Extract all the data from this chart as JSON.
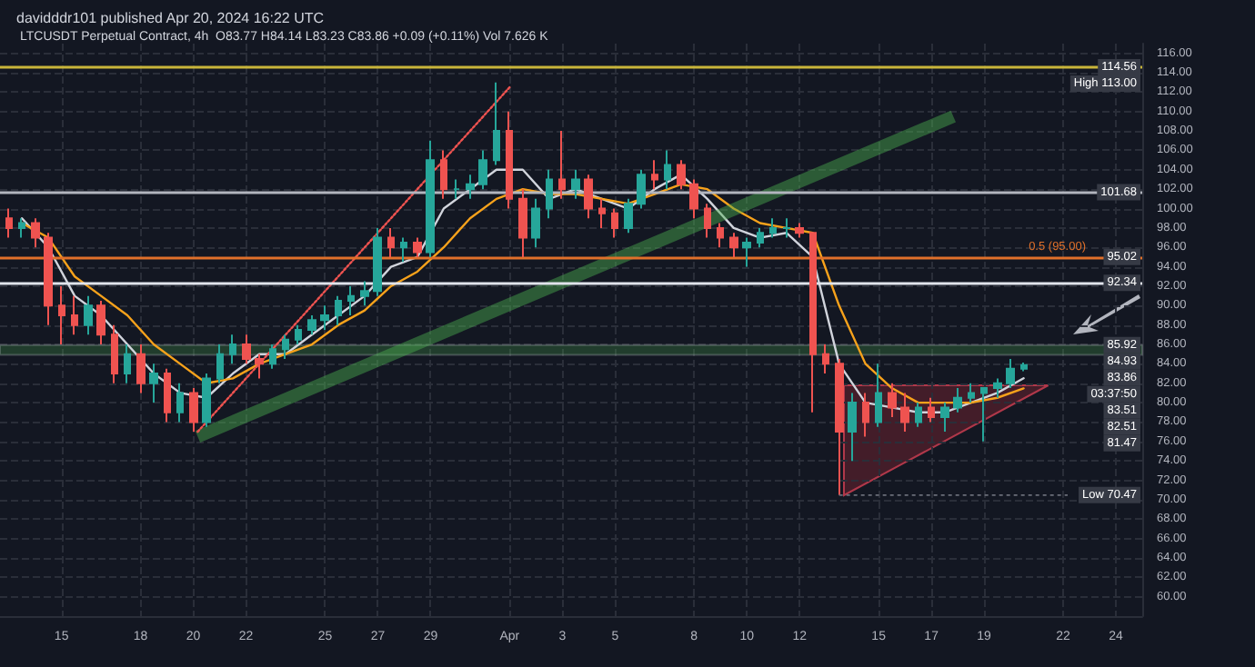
{
  "chart_data": {
    "type": "candlestick",
    "title": "LTCUSDT Perpetual Contract, 4h  O83.77 H84.14 L83.23 C83.86 +0.09 (+0.11%) Vol 7.626 K",
    "subtitle": "davidddr101 published Apr 20, 2024 16:22 UTC",
    "xlim": [
      "2024-03-12T16:00",
      "2024-04-25"
    ],
    "xticks": [
      {
        "value": "2024-03-15",
        "label": "15"
      },
      {
        "value": "2024-03-18",
        "label": "18"
      },
      {
        "value": "2024-03-20",
        "label": "20"
      },
      {
        "value": "2024-03-22",
        "label": "22"
      },
      {
        "value": "2024-03-25",
        "label": "25"
      },
      {
        "value": "2024-03-27",
        "label": "27"
      },
      {
        "value": "2024-03-29",
        "label": "29"
      },
      {
        "value": "2024-04-01",
        "label": "Apr"
      },
      {
        "value": "2024-04-03",
        "label": "3"
      },
      {
        "value": "2024-04-05",
        "label": "5"
      },
      {
        "value": "2024-04-08",
        "label": "8"
      },
      {
        "value": "2024-04-10",
        "label": "10"
      },
      {
        "value": "2024-04-12",
        "label": "12"
      },
      {
        "value": "2024-04-15",
        "label": "15"
      },
      {
        "value": "2024-04-17",
        "label": "17"
      },
      {
        "value": "2024-04-19",
        "label": "19"
      },
      {
        "value": "2024-04-22",
        "label": "22"
      },
      {
        "value": "2024-04-24",
        "label": "24"
      }
    ],
    "ylim": [
      58,
      117
    ],
    "yticks": [
      {
        "value": 60,
        "label": "60.00"
      },
      {
        "value": 62,
        "label": "62.00"
      },
      {
        "value": 64,
        "label": "64.00"
      },
      {
        "value": 66,
        "label": "66.00"
      },
      {
        "value": 68,
        "label": "68.00"
      },
      {
        "value": 70,
        "label": "70.00"
      },
      {
        "value": 72,
        "label": "72.00"
      },
      {
        "value": 74,
        "label": "74.00"
      },
      {
        "value": 76,
        "label": "76.00"
      },
      {
        "value": 78,
        "label": "78.00"
      },
      {
        "value": 80,
        "label": "80.00"
      },
      {
        "value": 82,
        "label": "82.00"
      },
      {
        "value": 84,
        "label": "84.00"
      },
      {
        "value": 86,
        "label": "86.00"
      },
      {
        "value": 88,
        "label": "88.00"
      },
      {
        "value": 90,
        "label": "90.00"
      },
      {
        "value": 92,
        "label": "92.00"
      },
      {
        "value": 94,
        "label": "94.00"
      },
      {
        "value": 96,
        "label": "96.00"
      },
      {
        "value": 98,
        "label": "98.00"
      },
      {
        "value": 100,
        "label": "100.00"
      },
      {
        "value": 102,
        "label": "102.00"
      },
      {
        "value": 104,
        "label": "104.00"
      },
      {
        "value": 106,
        "label": "106.00"
      },
      {
        "value": 108,
        "label": "108.00"
      },
      {
        "value": 110,
        "label": "110.00"
      },
      {
        "value": 112,
        "label": "112.00"
      },
      {
        "value": 114,
        "label": "114.00"
      },
      {
        "value": 116,
        "label": "116.00"
      }
    ],
    "grid": true,
    "series": [
      {
        "colors": [
          "#ef5350",
          "#26a69a",
          "#ef5350",
          "#ef5350",
          "#ef5350",
          "#ef5350",
          "#26a69a",
          "#ef5350",
          "#ef5350",
          "#26a69a",
          "#ef5350",
          "#26a69a",
          "#ef5350",
          "#26a69a",
          "#ef5350",
          "#26a69a",
          "#26a69a",
          "#26a69a",
          "#ef5350",
          "#ef5350",
          "#26a69a",
          "#26a69a",
          "#26a69a",
          "#26a69a",
          "#26a69a",
          "#26a69a",
          "#26a69a",
          "#26a69a",
          "#26a69a",
          "#ef5350",
          "#26a69a",
          "#ef5350",
          "#26a69a",
          "#ef5350",
          "#26a69a",
          "#26a69a",
          "#26a69a",
          "#26a69a",
          "#ef5350",
          "#ef5350",
          "#26a69a",
          "#26a69a",
          "#ef5350",
          "#26a69a",
          "#ef5350",
          "#ef5350",
          "#ef5350",
          "#26a69a",
          "#26a69a",
          "#ef5350",
          "#26a69a",
          "#ef5350",
          "#ef5350",
          "#ef5350",
          "#ef5350",
          "#ef5350",
          "#26a69a",
          "#26a69a",
          "#26a69a",
          "#26a69a",
          "#ef5350",
          "#ef5350",
          "#ef5350",
          "#ef5350",
          "#26a69a",
          "#ef5350",
          "#26a69a",
          "#ef5350",
          "#ef5350",
          "#26a69a",
          "#ef5350",
          "#26a69a",
          "#26a69a",
          "#26a69a",
          "#26a69a",
          "#26a69a",
          "#26a69a",
          "#26a69a"
        ],
        "x": [
          "2024-03-13T00:00",
          "2024-03-13T12:00",
          "2024-03-14T00:00",
          "2024-03-14T12:00",
          "2024-03-15T00:00",
          "2024-03-15T12:00",
          "2024-03-16T00:00",
          "2024-03-16T12:00",
          "2024-03-17T00:00",
          "2024-03-17T12:00",
          "2024-03-18T00:00",
          "2024-03-18T12:00",
          "2024-03-19T00:00",
          "2024-03-19T12:00",
          "2024-03-20T00:00",
          "2024-03-20T12:00",
          "2024-03-21T00:00",
          "2024-03-21T12:00",
          "2024-03-22T00:00",
          "2024-03-22T12:00",
          "2024-03-23T00:00",
          "2024-03-23T12:00",
          "2024-03-24T00:00",
          "2024-03-24T12:00",
          "2024-03-25T00:00",
          "2024-03-25T12:00",
          "2024-03-26T00:00",
          "2024-03-26T12:00",
          "2024-03-27T00:00",
          "2024-03-27T12:00",
          "2024-03-28T00:00",
          "2024-03-28T12:00",
          "2024-03-29T00:00",
          "2024-03-29T12:00",
          "2024-03-30T00:00",
          "2024-03-30T12:00",
          "2024-03-31T00:00",
          "2024-03-31T12:00",
          "2024-04-01T00:00",
          "2024-04-01T12:00",
          "2024-04-02T00:00",
          "2024-04-02T12:00",
          "2024-04-03T00:00",
          "2024-04-03T12:00",
          "2024-04-04T00:00",
          "2024-04-04T12:00",
          "2024-04-05T00:00",
          "2024-04-05T12:00",
          "2024-04-06T00:00",
          "2024-04-06T12:00",
          "2024-04-07T00:00",
          "2024-04-07T12:00",
          "2024-04-08T00:00",
          "2024-04-08T12:00",
          "2024-04-09T00:00",
          "2024-04-09T12:00",
          "2024-04-10T00:00",
          "2024-04-10T12:00",
          "2024-04-11T00:00",
          "2024-04-11T12:00",
          "2024-04-12T00:00",
          "2024-04-12T12:00",
          "2024-04-13T00:00",
          "2024-04-13T12:00",
          "2024-04-14T00:00",
          "2024-04-14T12:00",
          "2024-04-15T00:00",
          "2024-04-15T12:00",
          "2024-04-16T00:00",
          "2024-04-16T12:00",
          "2024-04-17T00:00",
          "2024-04-17T12:00",
          "2024-04-18T00:00",
          "2024-04-18T12:00",
          "2024-04-19T00:00",
          "2024-04-19T12:00",
          "2024-04-20T00:00",
          "2024-04-20T12:00"
        ],
        "ohlc": [
          [
            99,
            100,
            97,
            98
          ],
          [
            98,
            99,
            97,
            98.5
          ],
          [
            98.5,
            99,
            96,
            97
          ],
          [
            97,
            97.5,
            88,
            90
          ],
          [
            90,
            92,
            86,
            89
          ],
          [
            89,
            91,
            87,
            88
          ],
          [
            88,
            91,
            87,
            90
          ],
          [
            90,
            90.5,
            86,
            87
          ],
          [
            87,
            88,
            82,
            83
          ],
          [
            83,
            86,
            82,
            85
          ],
          [
            85,
            86,
            81,
            82
          ],
          [
            82,
            84,
            80,
            83
          ],
          [
            83,
            83.5,
            78,
            79
          ],
          [
            79,
            82,
            78,
            81
          ],
          [
            81,
            81.5,
            77,
            78
          ],
          [
            78,
            83,
            77.5,
            82.5
          ],
          [
            82.5,
            86,
            82,
            85
          ],
          [
            85,
            87,
            84,
            86
          ],
          [
            86,
            87,
            84,
            84.5
          ],
          [
            84.5,
            85,
            82.5,
            84
          ],
          [
            84,
            86,
            83.5,
            85.5
          ],
          [
            85.5,
            87,
            84.5,
            86.5
          ],
          [
            86.5,
            88,
            86,
            87.5
          ],
          [
            87.5,
            89,
            87,
            88.5
          ],
          [
            88.5,
            90,
            87.5,
            89
          ],
          [
            89,
            91,
            88,
            90.5
          ],
          [
            90.5,
            92,
            89,
            91
          ],
          [
            91,
            92.5,
            90,
            91.5
          ],
          [
            91.5,
            98,
            91,
            97
          ],
          [
            97,
            98,
            95,
            96
          ],
          [
            96,
            97,
            94.5,
            96.5
          ],
          [
            96.5,
            97,
            95,
            95.5
          ],
          [
            95.5,
            107,
            95,
            105
          ],
          [
            105,
            106,
            101,
            102
          ],
          [
            102,
            103,
            101,
            102
          ],
          [
            102,
            103.5,
            101,
            102.5
          ],
          [
            102.5,
            106,
            102,
            105
          ],
          [
            105,
            113,
            104.5,
            108
          ],
          [
            108,
            110,
            100,
            101
          ],
          [
            101,
            102,
            95,
            97
          ],
          [
            97,
            101,
            96,
            100
          ],
          [
            100,
            104,
            99,
            103
          ],
          [
            103,
            108,
            101,
            102
          ],
          [
            102,
            104,
            101,
            103
          ],
          [
            103,
            103.5,
            99,
            100
          ],
          [
            100,
            101,
            98,
            99.5
          ],
          [
            99.5,
            100,
            97,
            98
          ],
          [
            98,
            101,
            97.5,
            100.5
          ],
          [
            100.5,
            104,
            100,
            103.5
          ],
          [
            103.5,
            105,
            102,
            103
          ],
          [
            103,
            106,
            102,
            104.5
          ],
          [
            104.5,
            105,
            102,
            102.5
          ],
          [
            102.5,
            103,
            99,
            100
          ],
          [
            100,
            100.5,
            97,
            98
          ],
          [
            98,
            98.5,
            96,
            97
          ],
          [
            97,
            97.5,
            95,
            96
          ],
          [
            96,
            97,
            94,
            96.5
          ],
          [
            96.5,
            98,
            96,
            97.5
          ],
          [
            97.5,
            99,
            97,
            98
          ],
          [
            98,
            99,
            97,
            98
          ],
          [
            98,
            98.5,
            97,
            97.5
          ],
          [
            97.5,
            97.5,
            79,
            85
          ],
          [
            85,
            86,
            83,
            84
          ],
          [
            84,
            84.5,
            70.47,
            77
          ],
          [
            77,
            81,
            74,
            80
          ],
          [
            80,
            81,
            76.5,
            78
          ],
          [
            78,
            84,
            77.5,
            81
          ],
          [
            81,
            82,
            78.5,
            79.5
          ],
          [
            79.5,
            81,
            77,
            78
          ],
          [
            78,
            80,
            77.5,
            79.5
          ],
          [
            79.5,
            80.5,
            78,
            78.5
          ],
          [
            78.5,
            80,
            77,
            79.5
          ],
          [
            79.5,
            81.5,
            79,
            80.5
          ],
          [
            80.5,
            82,
            80,
            81
          ],
          [
            81,
            81.5,
            76,
            81.5
          ],
          [
            81.5,
            82.5,
            80.5,
            82
          ],
          [
            82,
            84.5,
            81.5,
            83.5
          ],
          [
            83.5,
            84.14,
            83.23,
            83.86
          ]
        ]
      },
      {
        "type": "line",
        "color": "#d1d4dc",
        "marker": "none",
        "line_style": "solid",
        "x": [
          "2024-03-13T12:00",
          "2024-03-14T12:00",
          "2024-03-15T12:00",
          "2024-03-16T12:00",
          "2024-03-17T12:00",
          "2024-03-18T12:00",
          "2024-03-19T12:00",
          "2024-03-20T12:00",
          "2024-03-21T12:00",
          "2024-03-22T12:00",
          "2024-03-23T12:00",
          "2024-03-24T12:00",
          "2024-03-25T12:00",
          "2024-03-26T12:00",
          "2024-03-27T12:00",
          "2024-03-28T12:00",
          "2024-03-29T12:00",
          "2024-03-30T12:00",
          "2024-03-31T12:00",
          "2024-04-01T12:00",
          "2024-04-02T12:00",
          "2024-04-03T12:00",
          "2024-04-04T12:00",
          "2024-04-05T12:00",
          "2024-04-06T12:00",
          "2024-04-07T12:00",
          "2024-04-08T12:00",
          "2024-04-09T12:00",
          "2024-04-10T12:00",
          "2024-04-11T12:00",
          "2024-04-12T12:00",
          "2024-04-13T12:00",
          "2024-04-14T12:00",
          "2024-04-15T12:00",
          "2024-04-16T12:00",
          "2024-04-17T12:00",
          "2024-04-18T12:00",
          "2024-04-19T12:00",
          "2024-04-20T12:00"
        ],
        "values": [
          99,
          96,
          91,
          89,
          86,
          83,
          81,
          80.5,
          83,
          85,
          85,
          87,
          89,
          91,
          94,
          95,
          100,
          102,
          104,
          104,
          101,
          102,
          101,
          100,
          102,
          103.5,
          101,
          98,
          97,
          97.5,
          95,
          84,
          80,
          79.5,
          79,
          79,
          80,
          81,
          82.51
        ]
      },
      {
        "type": "line",
        "color": "#f7a21b",
        "marker": "none",
        "line_style": "solid",
        "x": [
          "2024-03-13T12:00",
          "2024-03-14T12:00",
          "2024-03-15T12:00",
          "2024-03-16T12:00",
          "2024-03-17T12:00",
          "2024-03-18T12:00",
          "2024-03-19T12:00",
          "2024-03-20T12:00",
          "2024-03-21T12:00",
          "2024-03-22T12:00",
          "2024-03-23T12:00",
          "2024-03-24T12:00",
          "2024-03-25T12:00",
          "2024-03-26T12:00",
          "2024-03-27T12:00",
          "2024-03-28T12:00",
          "2024-03-29T12:00",
          "2024-03-30T12:00",
          "2024-03-31T12:00",
          "2024-04-01T12:00",
          "2024-04-02T12:00",
          "2024-04-03T12:00",
          "2024-04-04T12:00",
          "2024-04-05T12:00",
          "2024-04-06T12:00",
          "2024-04-07T12:00",
          "2024-04-08T12:00",
          "2024-04-09T12:00",
          "2024-04-10T12:00",
          "2024-04-11T12:00",
          "2024-04-12T12:00",
          "2024-04-13T12:00",
          "2024-04-14T12:00",
          "2024-04-15T12:00",
          "2024-04-16T12:00",
          "2024-04-17T12:00",
          "2024-04-18T12:00",
          "2024-04-19T12:00",
          "2024-04-20T12:00"
        ],
        "values": [
          98.5,
          97,
          93,
          91,
          89,
          86,
          84,
          82,
          82.5,
          84,
          85,
          86,
          88,
          89.5,
          92,
          93.5,
          96,
          99,
          101,
          102,
          101.5,
          101.5,
          101,
          100.5,
          101.5,
          102.5,
          102,
          100,
          98.5,
          98,
          97.5,
          90,
          84,
          81.5,
          80,
          80,
          80,
          80.5,
          81.47
        ]
      },
      {
        "type": "line",
        "color": "#4caf50",
        "marker": "none",
        "line_style": "solid",
        "x": [
          "2024-03-20T04:00",
          "2024-04-17T20:00"
        ],
        "values": [
          76.5,
          109.5
        ]
      },
      {
        "type": "line",
        "color": "#ef5350",
        "marker": "none",
        "line_style": "dotted",
        "x": [
          "2024-03-20T04:00",
          "2024-04-01T00:00"
        ],
        "values": [
          77,
          112.5
        ]
      }
    ],
    "ref_lines": [
      {
        "axis": "y",
        "value": 114.56,
        "color": "#c9b53a",
        "line_style": "solid",
        "label": null
      },
      {
        "axis": "y",
        "value": 101.68,
        "color": "#b2b5be",
        "line_style": "solid",
        "label": null
      },
      {
        "axis": "y",
        "value": 95,
        "color": "#e0702a",
        "line_style": "solid",
        "label": "0.5 (95.00)"
      },
      {
        "axis": "y",
        "value": 92.34,
        "color": "#e0e3eb",
        "line_style": "solid",
        "label": null
      }
    ],
    "bands": [
      {
        "axis": "y",
        "from": 84.93,
        "to": 85.92,
        "color": "#4caf50",
        "label": null
      }
    ],
    "annotations": [
      {
        "text": "114.56",
        "y": 114.56
      },
      "High 113.00",
      {
        "text": "101.68",
        "y": 101.68
      },
      {
        "text": "95.02",
        "y": 95.02
      },
      {
        "text": "92.34",
        "y": 92.34
      },
      {
        "text": "85.92",
        "y": 85.92
      },
      "84.93",
      "83.86",
      "03:37:50",
      "83.51",
      "82.51",
      "81.47",
      {
        "text": "Low 70.47",
        "x": "2024-04-13T12:00",
        "y": 70.47
      }
    ]
  }
}
